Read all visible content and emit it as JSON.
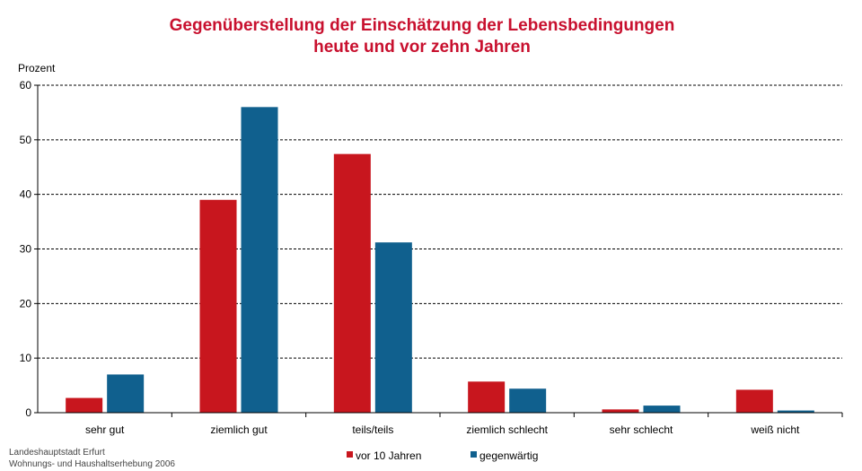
{
  "chart_data": {
    "type": "bar",
    "title_lines": [
      "Gegenüberstellung der Einschätzung der Lebensbedingungen",
      "heute und vor zehn Jahren"
    ],
    "ylabel": "Prozent",
    "ylim": [
      0,
      60
    ],
    "yticks": [
      0,
      10,
      20,
      30,
      40,
      50,
      60
    ],
    "grid": true,
    "legend_placement": "bottom",
    "categories": [
      "sehr gut",
      "ziemlich gut",
      "teils/teils",
      "ziemlich schlecht",
      "sehr schlecht",
      "weiß nicht"
    ],
    "series": [
      {
        "name": "vor 10 Jahren",
        "color": "#c8161e",
        "values": [
          2.7,
          39.0,
          47.4,
          5.7,
          0.6,
          4.2
        ]
      },
      {
        "name": "gegenwärtig",
        "color": "#10608e",
        "values": [
          7.0,
          56.0,
          31.2,
          4.4,
          1.3,
          0.4
        ]
      }
    ]
  },
  "source_lines": [
    "Landeshauptstadt Erfurt",
    "Wohnungs- und Haushaltserhebung 2006"
  ]
}
